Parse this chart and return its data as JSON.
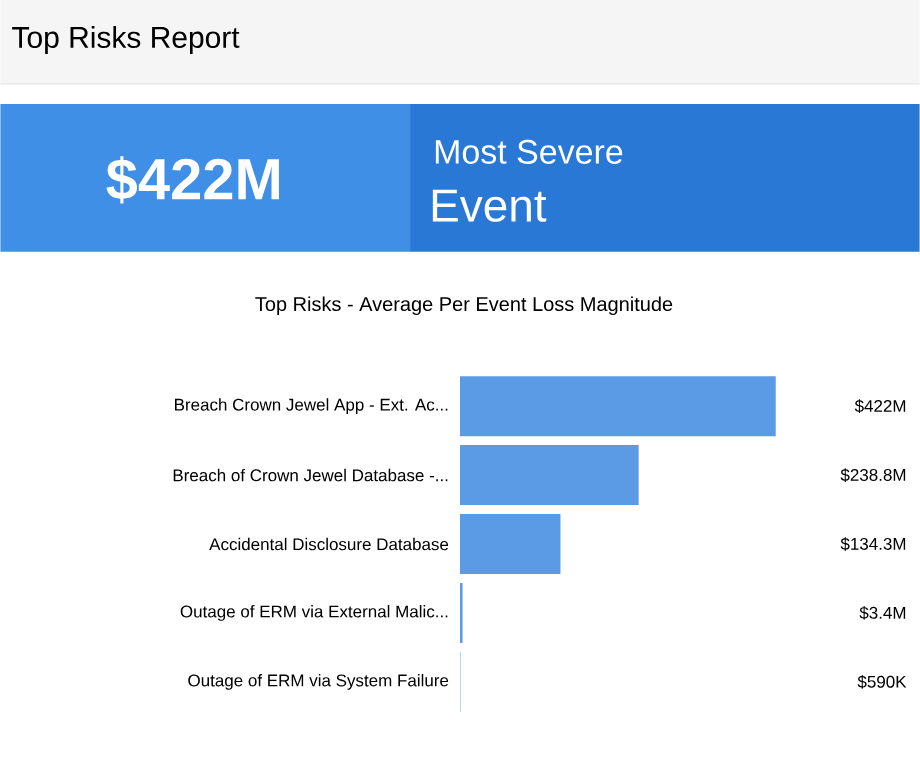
{
  "chart_data": {
    "type": "bar",
    "orientation": "horizontal",
    "title": "Top Risks - Average Per Event Loss Magnitude",
    "annotations": [
      "Top Risks Report",
      "$422M",
      "Most Severe",
      "Event"
    ],
    "categories": [
      "Breach Crown Jewel App - Ext. Ac...",
      "Breach of Crown Jewel Database -...",
      "Accidental Disclosure Database",
      "Outage of ERM via External Malic...",
      "Outage of ERM via System Failure"
    ],
    "values": [
      422000000,
      238800000,
      134300000,
      3400000,
      590000
    ],
    "value_labels": [
      "$422M",
      "$238.8M",
      "$134.3M",
      "$3.4M",
      "$590K"
    ],
    "color": "#5b9be6"
  }
}
